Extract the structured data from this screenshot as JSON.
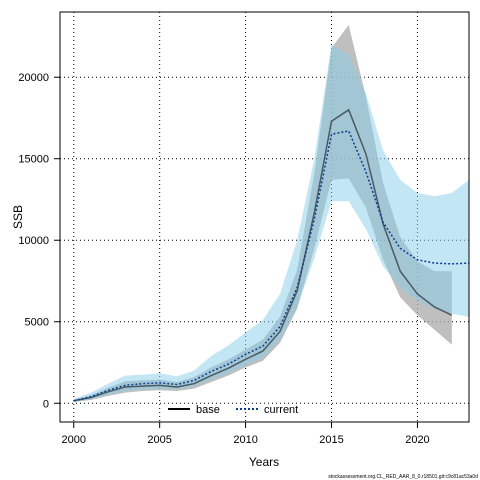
{
  "chart_data": {
    "type": "line",
    "xlabel": "Years",
    "ylabel": "SSB",
    "xlim": [
      1999.2,
      2023.0
    ],
    "ylim": [
      -1150,
      24000
    ],
    "xticks": [
      2000,
      2005,
      2010,
      2015,
      2020
    ],
    "yticks": [
      0,
      5000,
      10000,
      15000,
      20000
    ],
    "grid": true,
    "legend_position": "bottom-center",
    "footer": "stockassessment.org.CL_RED_AAR_8_0.r18501.git:c9c81ac53a0d",
    "series": [
      {
        "name": "base",
        "line_style": "solid",
        "line_color": "#000000",
        "band_color": "#aaaaaa",
        "x": [
          2000,
          2001,
          2002,
          2003,
          2004,
          2005,
          2006,
          2007,
          2008,
          2009,
          2010,
          2011,
          2012,
          2013,
          2014,
          2015,
          2016,
          2017,
          2018,
          2019,
          2020,
          2021,
          2022
        ],
        "values": [
          150,
          350,
          700,
          1000,
          1050,
          1100,
          1000,
          1200,
          1700,
          2150,
          2700,
          3200,
          4400,
          6900,
          11700,
          17300,
          18000,
          15300,
          11000,
          8100,
          6700,
          5900,
          5400
        ],
        "lower": [
          80,
          200,
          450,
          650,
          750,
          800,
          750,
          900,
          1300,
          1700,
          2200,
          2600,
          3700,
          5800,
          9500,
          13700,
          13800,
          12000,
          8800,
          6500,
          5400,
          4500,
          3600
        ],
        "upper": [
          230,
          500,
          950,
          1350,
          1400,
          1450,
          1300,
          1600,
          2200,
          2700,
          3300,
          3900,
          5300,
          8200,
          14100,
          21800,
          23200,
          18800,
          13500,
          10200,
          8700,
          8100,
          8100
        ]
      },
      {
        "name": "current",
        "line_style": "dotted",
        "line_color": "#0b3d91",
        "band_color": "#87ceeb",
        "x": [
          2000,
          2001,
          2002,
          2003,
          2004,
          2005,
          2006,
          2007,
          2008,
          2009,
          2010,
          2011,
          2012,
          2013,
          2014,
          2015,
          2016,
          2017,
          2018,
          2019,
          2020,
          2021,
          2022,
          2023
        ],
        "values": [
          150,
          400,
          800,
          1100,
          1200,
          1250,
          1150,
          1400,
          1950,
          2400,
          3000,
          3500,
          4700,
          7100,
          11300,
          16500,
          16700,
          14200,
          11100,
          9500,
          8800,
          8600,
          8550,
          8600
        ],
        "lower": [
          80,
          250,
          500,
          750,
          850,
          900,
          850,
          1050,
          1450,
          1850,
          2350,
          2800,
          3900,
          5900,
          8900,
          12400,
          12400,
          10700,
          8400,
          7100,
          6300,
          5800,
          5500,
          5300
        ],
        "upper": [
          260,
          650,
          1200,
          1700,
          1750,
          1850,
          1650,
          2000,
          2900,
          3550,
          4350,
          5100,
          6700,
          10000,
          15000,
          22000,
          21400,
          19000,
          15500,
          13700,
          12900,
          12700,
          12900,
          13700
        ]
      }
    ]
  }
}
